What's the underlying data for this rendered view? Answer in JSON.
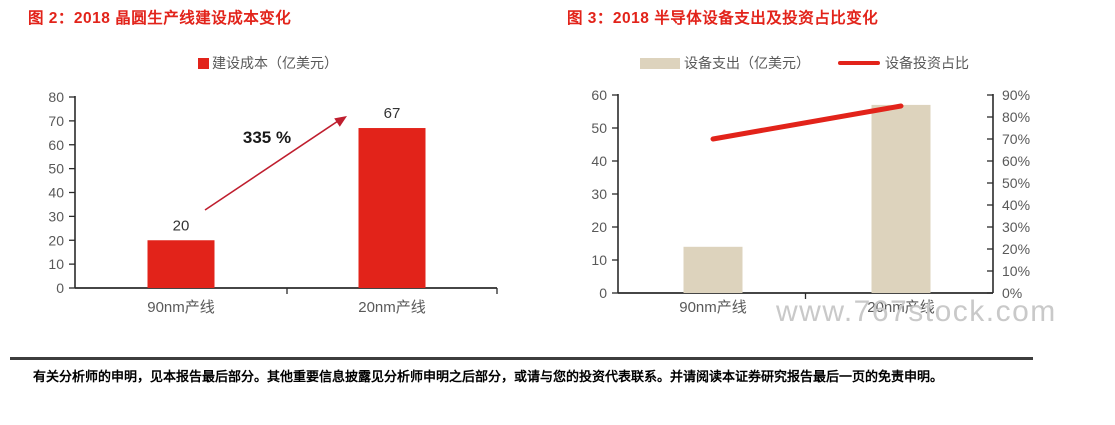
{
  "page": {
    "watermark": "www.767stock.com",
    "footer_text": "有关分析师的申明，见本报告最后部分。其他重要信息披露见分析师申明之后部分，或请与您的投资代表联系。并请阅读本证券研究报告最后一页的免责申明。"
  },
  "colors": {
    "title_red": "#e2231a",
    "bar_red": "#e2231a",
    "bar_tan": "#ddd3bd",
    "line_red": "#e2231a",
    "arrow_red": "#bf1e2e",
    "axis": "#2b2b2b",
    "tick_label": "#595959",
    "data_label": "#333333",
    "annotation": "#1a1a1a",
    "watermark_gray": "#c9c9c9"
  },
  "chart_data": [
    {
      "type": "bar",
      "title": "图 2：2018 晶圆生产线建设成本变化",
      "legend": [
        "建设成本（亿美元）"
      ],
      "categories": [
        "90nm产线",
        "20nm产线"
      ],
      "values": [
        20,
        67
      ],
      "data_labels": [
        "20",
        "67"
      ],
      "annotation": "335 %",
      "ylim": [
        0,
        80
      ],
      "ytick_step": 10,
      "grid": false,
      "legend_position": "top"
    },
    {
      "type": "bar+line",
      "title": "图 3：2018 半导体设备支出及投资占比变化",
      "categories": [
        "90nm产线",
        "20nm产线"
      ],
      "series": [
        {
          "name": "设备支出（亿美元）",
          "type": "bar",
          "axis": "left",
          "values": [
            14,
            57
          ]
        },
        {
          "name": "设备投资占比",
          "type": "line",
          "axis": "right",
          "values_percent": [
            70,
            85
          ]
        }
      ],
      "ylim_left": [
        0,
        60
      ],
      "ytick_step_left": 10,
      "ylim_right_percent": [
        0,
        90
      ],
      "ytick_step_right_percent": 10,
      "grid": false,
      "legend_position": "top"
    }
  ]
}
